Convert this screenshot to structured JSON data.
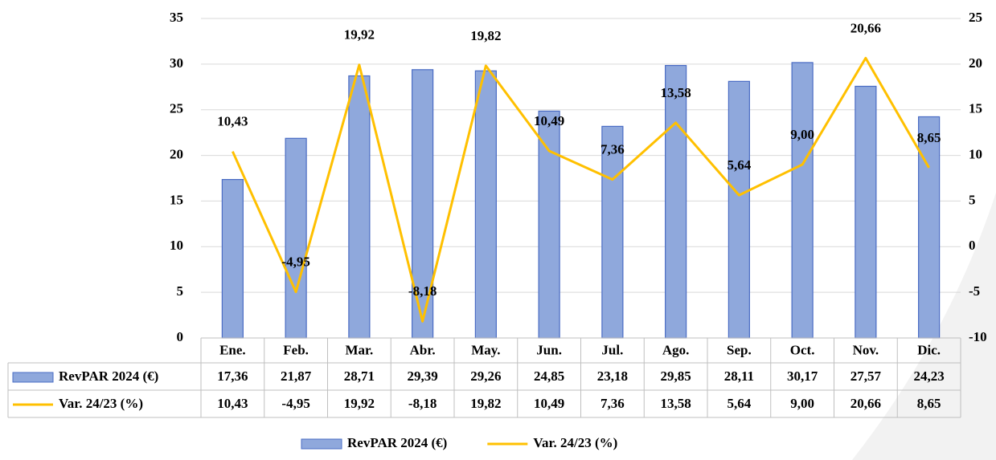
{
  "chart_data": {
    "type": "bar",
    "categories": [
      "Ene.",
      "Feb.",
      "Mar.",
      "Abr.",
      "May.",
      "Jun.",
      "Jul.",
      "Ago.",
      "Sep.",
      "Oct.",
      "Nov.",
      "Dic."
    ],
    "series": [
      {
        "name": "RevPAR 2024 (€)",
        "type": "bar",
        "color": "#8fa8dc",
        "border": "#4a6cc4",
        "values": [
          17.36,
          21.87,
          28.71,
          29.39,
          29.26,
          24.85,
          23.18,
          29.85,
          28.11,
          30.17,
          27.57,
          24.23
        ],
        "value_labels": [
          "17,36",
          "21,87",
          "28,71",
          "29,39",
          "29,26",
          "24,85",
          "23,18",
          "29,85",
          "28,11",
          "30,17",
          "27,57",
          "24,23"
        ]
      },
      {
        "name": "Var. 24/23 (%)",
        "type": "line",
        "axis": "y2",
        "color": "#ffc000",
        "values": [
          10.43,
          -4.95,
          19.92,
          -8.18,
          19.82,
          10.49,
          7.36,
          13.58,
          5.64,
          9.0,
          20.66,
          8.65
        ],
        "value_labels": [
          "10,43",
          "-4,95",
          "19,92",
          "-8,18",
          "19,82",
          "10,49",
          "7,36",
          "13,58",
          "5,64",
          "9,00",
          "20,66",
          "8,65"
        ]
      }
    ],
    "ylim": [
      0,
      35
    ],
    "yticks": [
      0,
      5,
      10,
      15,
      20,
      25,
      30,
      35
    ],
    "y2lim": [
      -10,
      25
    ],
    "y2ticks": [
      -10,
      -5,
      0,
      5,
      10,
      15,
      20,
      25
    ],
    "grid": true,
    "data_table": true,
    "legend": "bottom"
  }
}
